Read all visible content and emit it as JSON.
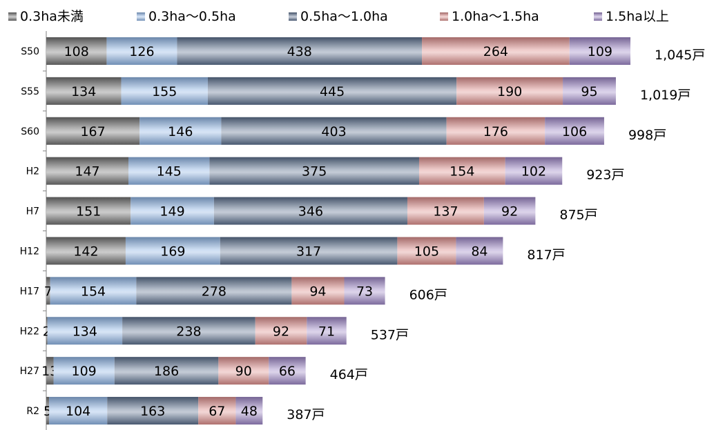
{
  "chart_data": {
    "type": "bar",
    "orientation": "horizontal",
    "stacked": true,
    "categories": [
      "S50",
      "S55",
      "S60",
      "H2",
      "H7",
      "H12",
      "H17",
      "H22",
      "H27",
      "R2"
    ],
    "series": [
      {
        "name": "0.3ha未満",
        "color": "#6e6e6e",
        "values": [
          108,
          134,
          167,
          147,
          151,
          142,
          7,
          2,
          13,
          5
        ]
      },
      {
        "name": "0.3ha～0.5ha",
        "color": "#8db3e2",
        "values": [
          126,
          155,
          146,
          145,
          149,
          169,
          154,
          134,
          109,
          104
        ]
      },
      {
        "name": "0.5ha～1.0ha",
        "color": "#5a6e8c",
        "values": [
          438,
          445,
          403,
          375,
          346,
          317,
          278,
          238,
          186,
          163
        ]
      },
      {
        "name": "1.0ha～1.5ha",
        "color": "#d98c8a",
        "values": [
          264,
          190,
          176,
          154,
          137,
          105,
          94,
          92,
          90,
          67
        ]
      },
      {
        "name": "1.5ha以上",
        "color": "#9b84c4",
        "values": [
          109,
          95,
          106,
          102,
          92,
          84,
          73,
          71,
          66,
          48
        ]
      }
    ],
    "totals": [
      "1,045戸",
      "1,019戸",
      "998戸",
      "923戸",
      "875戸",
      "817戸",
      "606戸",
      "537戸",
      "464戸",
      "387戸"
    ],
    "legend_position": "top",
    "grid": false,
    "xlim": [
      0,
      1045
    ]
  }
}
